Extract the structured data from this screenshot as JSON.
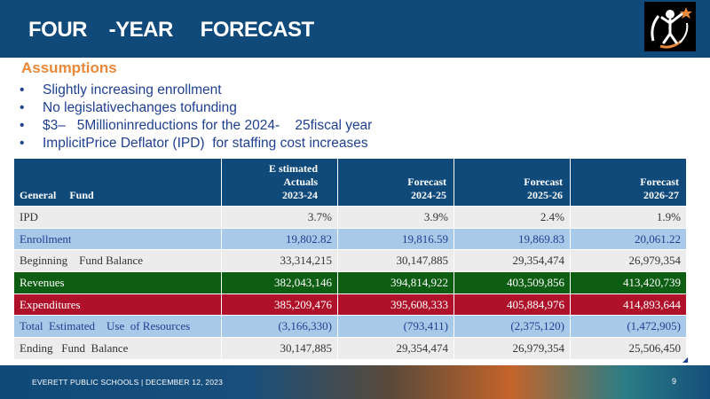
{
  "slide": {
    "title": "FOUR    -YEAR     FORECAST",
    "logo_icon": "district-logo-icon",
    "footer": "EVERETT PUBLIC SCHOOLS  |  DECEMBER 12, 2023",
    "page_number": "9",
    "colors": {
      "header": "#0f4a7a",
      "accent_orange": "#e8883a",
      "bullet_text": "#1f3f8f",
      "revenues_row": "#0d5d12",
      "expenditures_row": "#b0112a",
      "light_blue_row": "#a9c9e8"
    }
  },
  "assumptions": {
    "title": "Assumptions",
    "bullets": [
      "Slightly increasing enrollment",
      "No legislativechanges tofunding",
      "$3–   5Millioninreductions for the 2024-    25fiscal year",
      "ImplicitPrice Deflator (IPD)  for staffing cost increases"
    ]
  },
  "table": {
    "headers": {
      "label": "General     Fund",
      "c1": [
        "E stimated",
        "Actuals",
        "2023-24"
      ],
      "c2": [
        "Forecast",
        "2024-25"
      ],
      "c3": [
        "Forecast",
        "2025-26"
      ],
      "c4": [
        "Forecast",
        "2026-27"
      ]
    },
    "rows": [
      {
        "label": "IPD",
        "values": [
          "3.7%",
          "3.9%",
          "2.4%",
          "1.9%"
        ]
      },
      {
        "label": "Enrollment",
        "values": [
          "19,802.82",
          "19,816.59",
          "19,869.83",
          "20,061.22"
        ]
      },
      {
        "label": "Beginning    Fund Balance",
        "values": [
          "33,314,215",
          "30,147,885",
          "29,354,474",
          "26,979,354"
        ]
      },
      {
        "label": "Revenues",
        "values": [
          "382,043,146",
          "394,814,922",
          "403,509,856",
          "413,420,739"
        ]
      },
      {
        "label": "Expenditures",
        "values": [
          "385,209,476",
          "395,608,333",
          "405,884,976",
          "414,893,644"
        ]
      },
      {
        "label": "Total  Estimated    Use  of Resources",
        "values": [
          "(3,166,330)",
          "(793,411)",
          "(2,375,120)",
          "(1,472,905)"
        ]
      },
      {
        "label": "Ending   Fund  Balance",
        "values": [
          "30,147,885",
          "29,354,474",
          "26,979,354",
          "25,506,450"
        ]
      }
    ]
  }
}
